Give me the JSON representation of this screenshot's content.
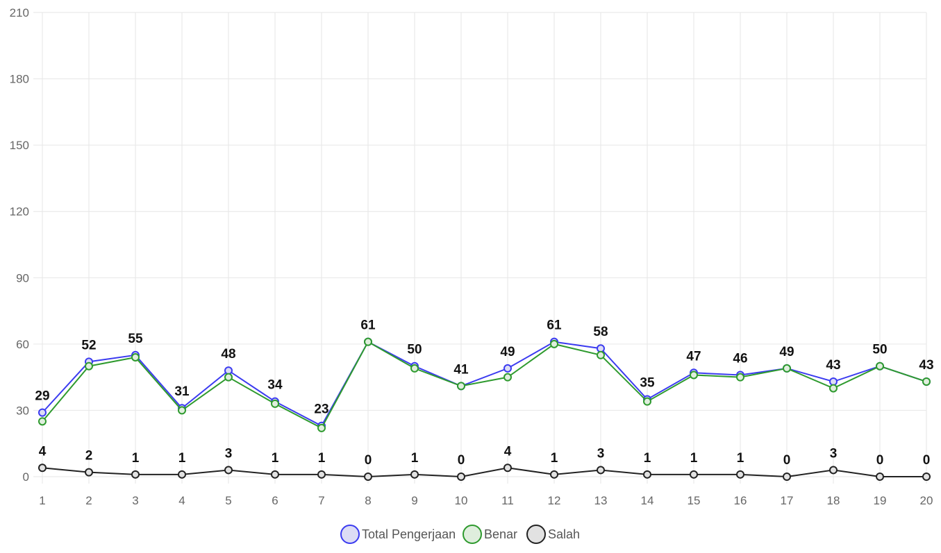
{
  "chart_data": {
    "type": "line",
    "categories": [
      "1",
      "2",
      "3",
      "4",
      "5",
      "6",
      "7",
      "8",
      "9",
      "10",
      "11",
      "12",
      "13",
      "14",
      "15",
      "16",
      "17",
      "18",
      "19",
      "20"
    ],
    "ylim": [
      0,
      210
    ],
    "yticks": [
      0,
      30,
      60,
      90,
      120,
      150,
      180,
      210
    ],
    "grid": true,
    "legend_position": "bottom",
    "series": [
      {
        "name": "Total Pengerjaan",
        "color": "#3b3bf0",
        "fill": "#dcdcf5",
        "values": [
          29,
          52,
          55,
          31,
          48,
          34,
          23,
          61,
          50,
          41,
          49,
          61,
          58,
          35,
          47,
          46,
          49,
          43,
          50,
          43
        ]
      },
      {
        "name": "Benar",
        "color": "#2e9a2e",
        "fill": "#dfeedd",
        "values": [
          25,
          50,
          54,
          30,
          45,
          33,
          22,
          61,
          49,
          41,
          45,
          60,
          55,
          34,
          46,
          45,
          49,
          40,
          50,
          43
        ]
      },
      {
        "name": "Salah",
        "color": "#222222",
        "fill": "#e2e2e2",
        "values": [
          4,
          2,
          1,
          1,
          3,
          1,
          1,
          0,
          1,
          0,
          4,
          1,
          3,
          1,
          1,
          1,
          0,
          3,
          0,
          0
        ]
      }
    ],
    "label_series": [
      0,
      2
    ]
  }
}
